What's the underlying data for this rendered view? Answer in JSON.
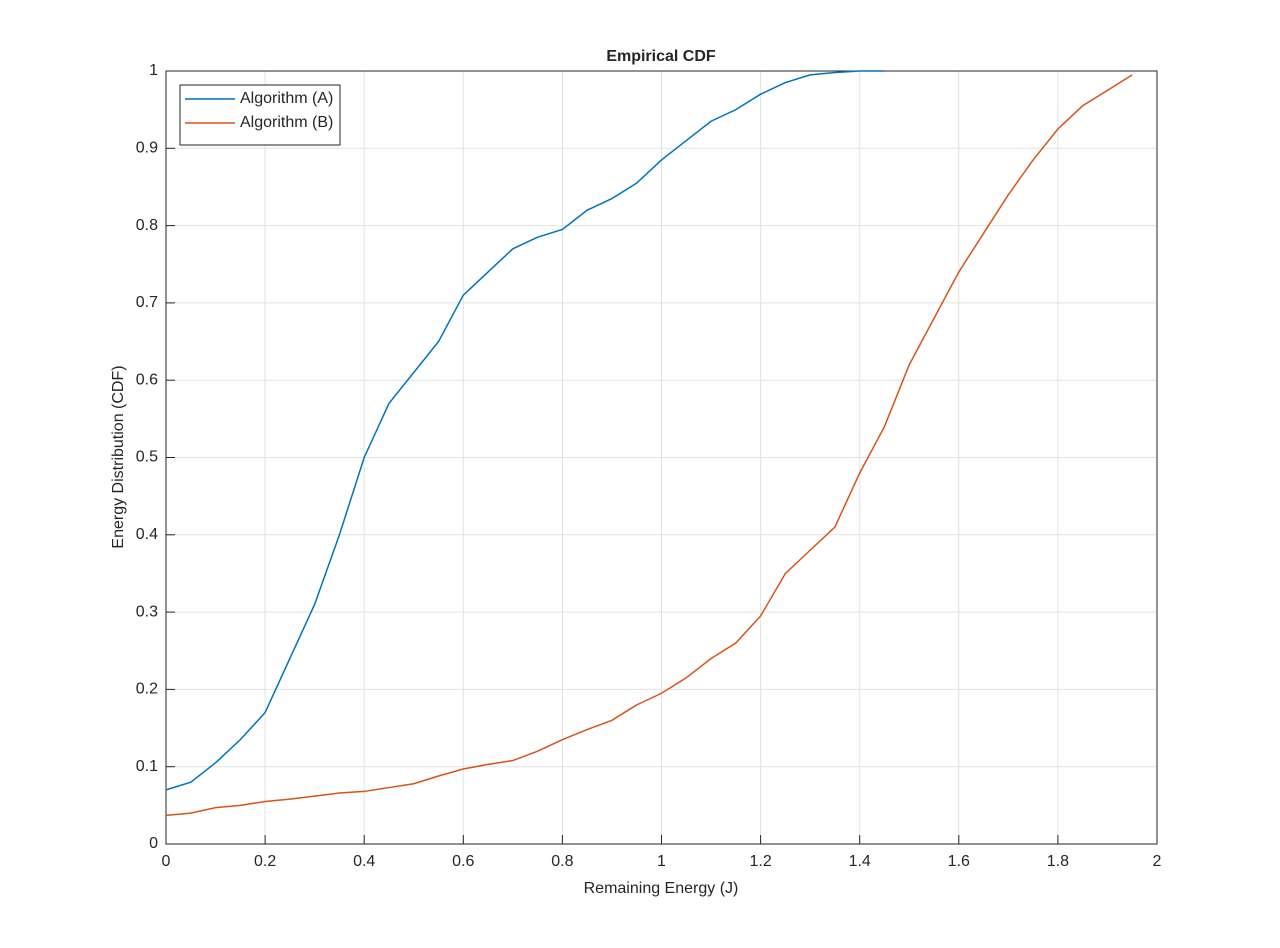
{
  "chart_data": {
    "type": "line",
    "title": "Empirical CDF",
    "x_label": "Remaining Energy (J)",
    "y_label": "Energy Distribution (CDF)",
    "x": [
      0,
      0.05,
      0.1,
      0.15,
      0.2,
      0.25,
      0.3,
      0.35,
      0.4,
      0.45,
      0.5,
      0.55,
      0.6,
      0.65,
      0.7,
      0.75,
      0.8,
      0.85,
      0.9,
      0.95,
      1,
      1.05,
      1.1,
      1.15,
      1.2,
      1.25,
      1.3,
      1.35,
      1.4,
      1.45,
      1.5,
      1.55,
      1.6,
      1.65,
      1.7,
      1.75,
      1.8,
      1.85,
      1.9,
      1.95,
      2
    ],
    "series": [
      {
        "name": "Algorithm (A)",
        "color": "#0072bd",
        "values": [
          0.07,
          0.08,
          0.105,
          0.135,
          0.17,
          0.24,
          0.31,
          0.4,
          0.5,
          0.57,
          0.61,
          0.65,
          0.71,
          0.74,
          0.77,
          0.785,
          0.795,
          0.82,
          0.835,
          0.855,
          0.885,
          0.91,
          0.935,
          0.95,
          0.97,
          0.985,
          0.995,
          0.998,
          1,
          1,
          null,
          null,
          null,
          null,
          null,
          null,
          null,
          null,
          null,
          null,
          null
        ]
      },
      {
        "name": "Algorithm (B)",
        "color": "#d95319",
        "values": [
          0.037,
          0.04,
          0.047,
          0.05,
          0.055,
          0.058,
          0.062,
          0.066,
          0.068,
          0.073,
          0.078,
          0.088,
          0.097,
          0.103,
          0.108,
          0.12,
          0.135,
          0.148,
          0.16,
          0.18,
          0.195,
          0.215,
          0.24,
          0.26,
          0.295,
          0.35,
          0.38,
          0.41,
          0.48,
          0.54,
          0.62,
          0.68,
          0.74,
          0.79,
          0.84,
          0.885,
          0.925,
          0.955,
          0.975,
          0.995,
          null
        ]
      }
    ],
    "xlim": [
      0,
      2
    ],
    "ylim": [
      0,
      1
    ],
    "xticks": [
      0,
      0.2,
      0.4,
      0.6,
      0.8,
      1,
      1.2,
      1.4,
      1.6,
      1.8,
      2
    ],
    "yticks": [
      0,
      0.1,
      0.2,
      0.3,
      0.4,
      0.5,
      0.6,
      0.7,
      0.8,
      0.9,
      1
    ],
    "grid": true,
    "legend_position": "upper-left"
  }
}
